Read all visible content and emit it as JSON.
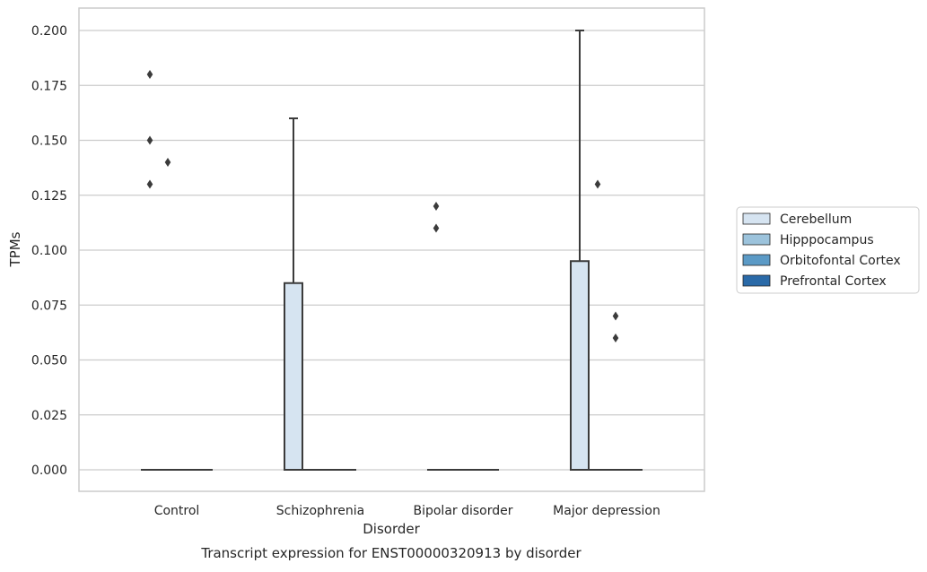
{
  "chart_data": {
    "type": "box",
    "title": "Transcript expression for ENST00000320913 by disorder",
    "xlabel": "Disorder",
    "ylabel": "TPMs",
    "ylim": [
      -0.01,
      0.21
    ],
    "yticks": [
      "0.000",
      "0.025",
      "0.050",
      "0.075",
      "0.100",
      "0.125",
      "0.150",
      "0.175",
      "0.200"
    ],
    "grid": "horizontal",
    "legend_position": "right",
    "categories": [
      "Control",
      "Schizophrenia",
      "Bipolar disorder",
      "Major depression"
    ],
    "series": [
      {
        "name": "Cerebellum",
        "color": "#d6e4f1",
        "boxes": [
          {
            "category": "Control",
            "q1": 0,
            "median": 0,
            "q3": 0,
            "whisker_low": 0,
            "whisker_high": 0,
            "outliers": [
              0.13,
              0.15,
              0.18
            ]
          },
          {
            "category": "Schizophrenia",
            "q1": 0,
            "median": 0,
            "q3": 0.085,
            "whisker_low": 0,
            "whisker_high": 0.16,
            "outliers": []
          },
          {
            "category": "Bipolar disorder",
            "q1": 0,
            "median": 0,
            "q3": 0,
            "whisker_low": 0,
            "whisker_high": 0,
            "outliers": [
              0.11,
              0.12
            ]
          },
          {
            "category": "Major depression",
            "q1": 0,
            "median": 0,
            "q3": 0.095,
            "whisker_low": 0,
            "whisker_high": 0.2,
            "outliers": []
          }
        ]
      },
      {
        "name": "Hipppocampus",
        "color": "#9cc3dc",
        "boxes": [
          {
            "category": "Control",
            "q1": 0,
            "median": 0,
            "q3": 0,
            "whisker_low": 0,
            "whisker_high": 0,
            "outliers": [
              0.14
            ]
          },
          {
            "category": "Schizophrenia",
            "q1": 0,
            "median": 0,
            "q3": 0,
            "whisker_low": 0,
            "whisker_high": 0,
            "outliers": []
          },
          {
            "category": "Bipolar disorder",
            "q1": 0,
            "median": 0,
            "q3": 0,
            "whisker_low": 0,
            "whisker_high": 0,
            "outliers": []
          },
          {
            "category": "Major depression",
            "q1": 0,
            "median": 0,
            "q3": 0,
            "whisker_low": 0,
            "whisker_high": 0,
            "outliers": [
              0.13
            ]
          }
        ]
      },
      {
        "name": "Orbitofontal Cortex",
        "color": "#5b9ac6",
        "boxes": [
          {
            "category": "Control",
            "q1": 0,
            "median": 0,
            "q3": 0,
            "whisker_low": 0,
            "whisker_high": 0,
            "outliers": []
          },
          {
            "category": "Schizophrenia",
            "q1": 0,
            "median": 0,
            "q3": 0,
            "whisker_low": 0,
            "whisker_high": 0,
            "outliers": []
          },
          {
            "category": "Bipolar disorder",
            "q1": 0,
            "median": 0,
            "q3": 0,
            "whisker_low": 0,
            "whisker_high": 0,
            "outliers": []
          },
          {
            "category": "Major depression",
            "q1": 0,
            "median": 0,
            "q3": 0,
            "whisker_low": 0,
            "whisker_high": 0,
            "outliers": [
              0.06,
              0.07
            ]
          }
        ]
      },
      {
        "name": "Prefrontal Cortex",
        "color": "#2a6aa8",
        "boxes": [
          {
            "category": "Control",
            "q1": 0,
            "median": 0,
            "q3": 0,
            "whisker_low": 0,
            "whisker_high": 0,
            "outliers": []
          },
          {
            "category": "Schizophrenia",
            "q1": 0,
            "median": 0,
            "q3": 0,
            "whisker_low": 0,
            "whisker_high": 0,
            "outliers": []
          },
          {
            "category": "Bipolar disorder",
            "q1": 0,
            "median": 0,
            "q3": 0,
            "whisker_low": 0,
            "whisker_high": 0,
            "outliers": []
          },
          {
            "category": "Major depression",
            "q1": 0,
            "median": 0,
            "q3": 0,
            "whisker_low": 0,
            "whisker_high": 0,
            "outliers": []
          }
        ]
      }
    ]
  }
}
